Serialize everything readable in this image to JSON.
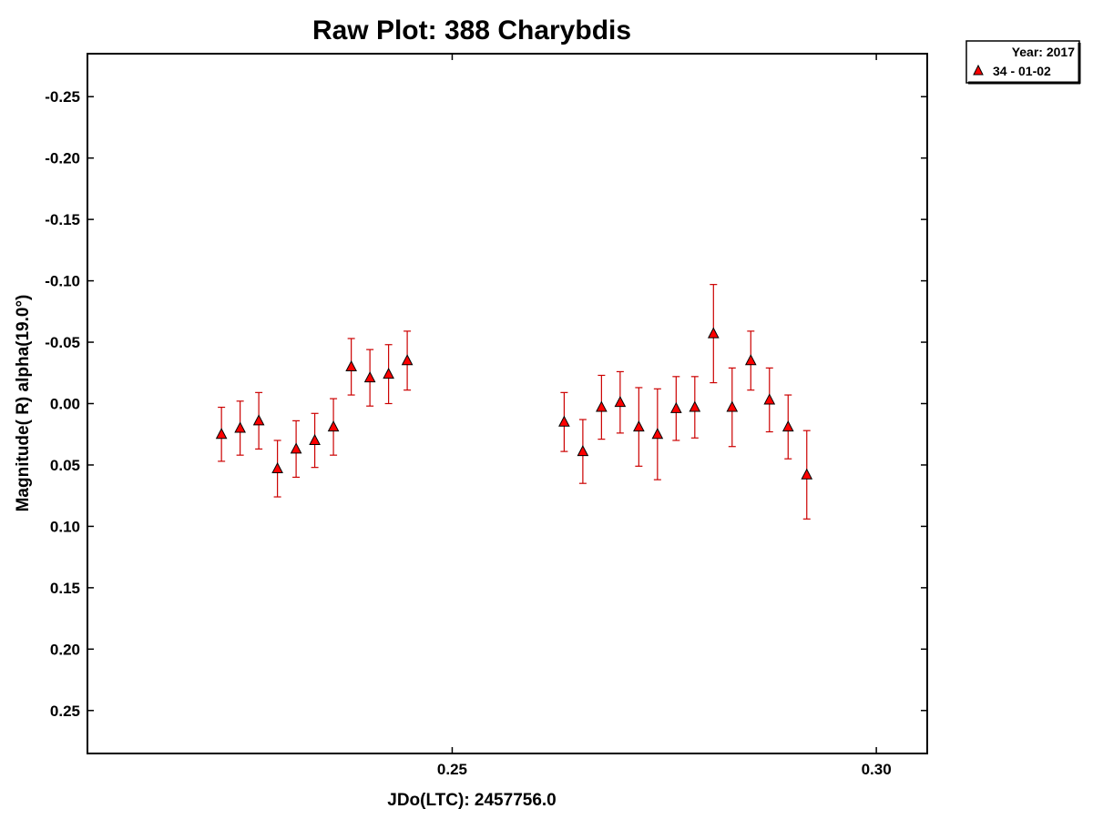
{
  "chart_data": {
    "type": "scatter",
    "title": "Raw Plot: 388 Charybdis",
    "xlabel": "JDo(LTC): 2457756.0",
    "ylabel": "Magnitude( R) alpha(19.0°)",
    "xlim": [
      0.207,
      0.306
    ],
    "ylim": [
      0.285,
      -0.285
    ],
    "y_inverted": true,
    "x_ticks": [
      0.25,
      0.3
    ],
    "x_tick_labels": [
      "0.25",
      "0.30"
    ],
    "y_ticks": [
      -0.25,
      -0.2,
      -0.15,
      -0.1,
      -0.05,
      0.0,
      0.05,
      0.1,
      0.15,
      0.2,
      0.25
    ],
    "y_tick_labels": [
      "-0.25",
      "-0.20",
      "-0.15",
      "-0.10",
      "-0.05",
      "0.00",
      "0.05",
      "0.10",
      "0.15",
      "0.20",
      "0.25"
    ],
    "grid": false,
    "legend_position": "outside-top-right",
    "legend": {
      "header": "Year: 2017",
      "entries": [
        "34 - 01-02"
      ]
    },
    "marker_color": "#ff0000",
    "errorbar_color": "#cc0000",
    "series": [
      {
        "name": "34 - 01-02",
        "points": [
          {
            "x": 0.2228,
            "y": 0.025,
            "err": 0.022
          },
          {
            "x": 0.225,
            "y": 0.02,
            "err": 0.022
          },
          {
            "x": 0.2272,
            "y": 0.014,
            "err": 0.023
          },
          {
            "x": 0.2294,
            "y": 0.053,
            "err": 0.023
          },
          {
            "x": 0.2316,
            "y": 0.037,
            "err": 0.023
          },
          {
            "x": 0.2338,
            "y": 0.03,
            "err": 0.022
          },
          {
            "x": 0.236,
            "y": 0.019,
            "err": 0.023
          },
          {
            "x": 0.2381,
            "y": -0.03,
            "err": 0.023
          },
          {
            "x": 0.2403,
            "y": -0.021,
            "err": 0.023
          },
          {
            "x": 0.2425,
            "y": -0.024,
            "err": 0.024
          },
          {
            "x": 0.2447,
            "y": -0.035,
            "err": 0.024
          },
          {
            "x": 0.2632,
            "y": 0.015,
            "err": 0.024
          },
          {
            "x": 0.2654,
            "y": 0.039,
            "err": 0.026
          },
          {
            "x": 0.2676,
            "y": 0.003,
            "err": 0.026
          },
          {
            "x": 0.2698,
            "y": -0.001,
            "err": 0.025
          },
          {
            "x": 0.272,
            "y": 0.019,
            "err": 0.032
          },
          {
            "x": 0.2742,
            "y": 0.025,
            "err": 0.037
          },
          {
            "x": 0.2764,
            "y": 0.004,
            "err": 0.026
          },
          {
            "x": 0.2786,
            "y": 0.003,
            "err": 0.025
          },
          {
            "x": 0.2808,
            "y": -0.057,
            "err": 0.04
          },
          {
            "x": 0.283,
            "y": 0.003,
            "err": 0.032
          },
          {
            "x": 0.2852,
            "y": -0.035,
            "err": 0.024
          },
          {
            "x": 0.2874,
            "y": -0.003,
            "err": 0.026
          },
          {
            "x": 0.2896,
            "y": 0.019,
            "err": 0.026
          },
          {
            "x": 0.2918,
            "y": 0.058,
            "err": 0.036
          }
        ]
      }
    ]
  }
}
